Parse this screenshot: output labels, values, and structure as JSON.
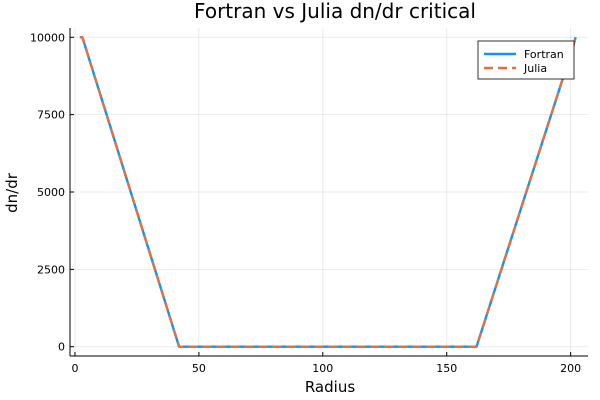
{
  "chart_data": {
    "type": "line",
    "title": "Fortran vs Julia dn/dr critical",
    "xlabel": "Radius",
    "ylabel": "dn/dr",
    "xlim": [
      -2,
      207
    ],
    "ylim": [
      -300,
      10300
    ],
    "xticks": [
      0,
      50,
      100,
      150,
      200
    ],
    "xtick_labels": [
      "0",
      "50",
      "100",
      "150",
      "200"
    ],
    "yticks": [
      0,
      2500,
      5000,
      7500,
      10000
    ],
    "ytick_labels": [
      "0",
      "2500",
      "5000",
      "7500",
      "10000"
    ],
    "grid": true,
    "legend_position": "top-right",
    "series": [
      {
        "name": "Fortran",
        "color": "#009af9",
        "dash": "solid",
        "x": [
          2,
          3,
          42,
          162,
          201,
          202
        ],
        "y": [
          10000,
          10000,
          0,
          0,
          9700,
          10000
        ]
      },
      {
        "name": "Julia",
        "color": "#e26f46",
        "dash": "dashed",
        "x": [
          2,
          3,
          42,
          162,
          201,
          202
        ],
        "y": [
          10000,
          10000,
          0,
          0,
          9700,
          10000
        ]
      }
    ]
  }
}
